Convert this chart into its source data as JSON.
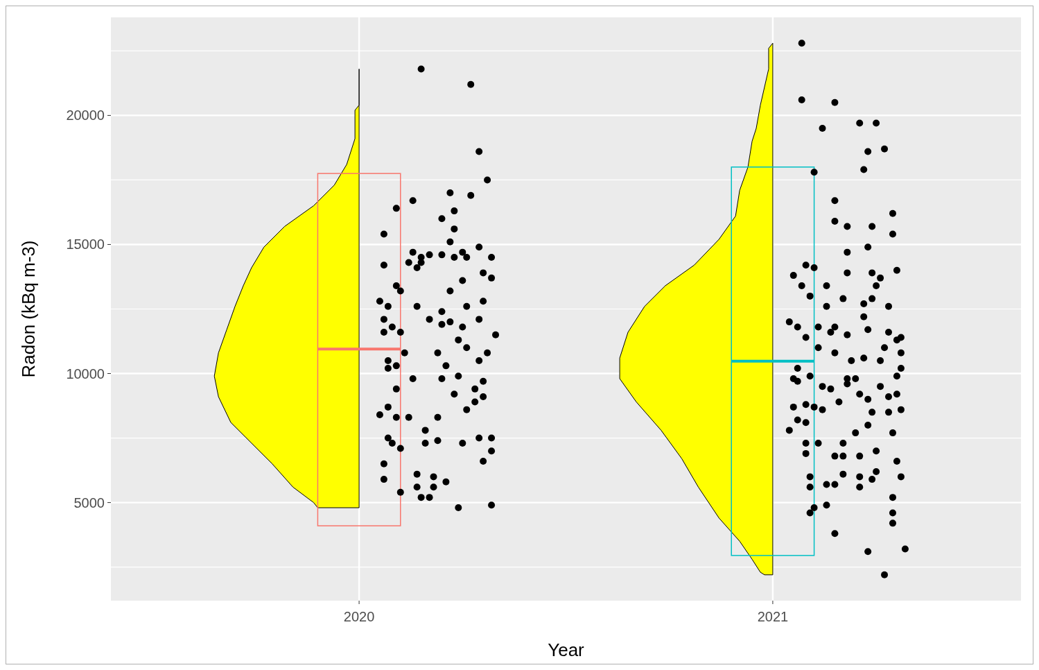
{
  "chart_data": {
    "type": "scatter",
    "xlabel": "Year",
    "ylabel": "Radon (kBq m-3)",
    "grid": true,
    "xlim": [
      2019.4,
      2021.6
    ],
    "xticks": [
      2020,
      2021
    ],
    "ylim": [
      1200,
      23800
    ],
    "yticks": [
      {
        "value": 2500,
        "label": null
      },
      5000,
      {
        "value": 7500,
        "label": null
      },
      10000,
      {
        "value": 12500,
        "label": null
      },
      15000,
      {
        "value": 17500,
        "label": null
      },
      20000,
      {
        "value": 22500,
        "label": null
      }
    ],
    "series": [
      {
        "type": "area",
        "color": "#ffff00",
        "x": [
          2020,
          2020,
          2019.99,
          2019.99,
          2019.97,
          2019.94,
          2019.89,
          2019.82,
          2019.77,
          2019.74,
          2019.72,
          2019.7,
          2019.68,
          2019.66,
          2019.65,
          2019.66,
          2019.69,
          2019.74,
          2019.79,
          2019.84,
          2019.89,
          2019.9,
          2020
        ],
        "values": [
          21800,
          20400,
          20200,
          19100,
          18100,
          17300,
          16500,
          15700,
          14900,
          14100,
          13400,
          12600,
          11700,
          10800,
          9900,
          9100,
          8100,
          7300,
          6500,
          5600,
          5000,
          4800,
          4800
        ]
      },
      {
        "type": "area",
        "color": "#ffff00",
        "x": [
          2021,
          2020.99,
          2020.99,
          2020.97,
          2020.96,
          2020.95,
          2020.94,
          2020.92,
          2020.91,
          2020.87,
          2020.81,
          2020.74,
          2020.69,
          2020.65,
          2020.63,
          2020.63,
          2020.67,
          2020.73,
          2020.78,
          2020.82,
          2020.87,
          2020.92,
          2020.95,
          2020.97,
          2020.98,
          2021
        ],
        "values": [
          22800,
          22600,
          21800,
          20400,
          19500,
          19000,
          18000,
          17100,
          16100,
          15200,
          14200,
          13400,
          12600,
          11600,
          10600,
          9800,
          8900,
          7800,
          6700,
          5600,
          4400,
          3500,
          2800,
          2300,
          2200,
          2200
        ]
      },
      {
        "type": "box",
        "x": [
          2020,
          2021
        ],
        "colors": [
          "#f8766d",
          "#00bfc4"
        ],
        "boxes": [
          {
            "low": 4100,
            "q1": 4100,
            "median": 10950,
            "q3": 17750,
            "high": 17750
          },
          {
            "low": 2950,
            "q1": 2950,
            "median": 10480,
            "q3": 18000,
            "high": 18000
          }
        ]
      },
      {
        "marker": "circle",
        "color": "#000000",
        "x": [
          2020.15,
          2020.27,
          2020.29,
          2020.31,
          2020.13,
          2020.27,
          2020.22,
          2020.09,
          2020.06,
          2020.23,
          2020.2,
          2020.23,
          2020.22,
          2020.25,
          2020.29,
          2020.32,
          2020.13,
          2020.15,
          2020.17,
          2020.2,
          2020.23,
          2020.26,
          2020.3,
          2020.32,
          2020.12,
          2020.14,
          2020.15,
          2020.09,
          2020.05,
          2020.07,
          2020.1,
          2020.14,
          2020.17,
          2020.2,
          2020.22,
          2020.25,
          2020.3,
          2020.33,
          2020.06,
          2020.08,
          2020.1,
          2020.11,
          2020.2,
          2020.24,
          2020.26,
          2020.29,
          2020.31,
          2020.07,
          2020.07,
          2020.09,
          2020.13,
          2020.19,
          2020.21,
          2020.24,
          2020.28,
          2020.3,
          2020.09,
          2020.07,
          2020.12,
          2020.19,
          2020.23,
          2020.26,
          2020.16,
          2020.19,
          2020.25,
          2020.29,
          2020.32,
          2020.06,
          2020.08,
          2020.1,
          2020.14,
          2020.18,
          2020.21,
          2020.3,
          2020.32,
          2020.06,
          2020.1,
          2020.15,
          2020.17,
          2020.18,
          2020.24,
          2020.32,
          2020.14,
          2020.07,
          2020.16,
          2020.28,
          2020.3,
          2020.26,
          2020.22,
          2020.25,
          2020.06,
          2020.06,
          2020.09,
          2020.05,
          2020.2,
          2020.29
        ],
        "values": [
          21800,
          21200,
          18600,
          17500,
          16700,
          16900,
          17000,
          16400,
          15400,
          16300,
          16000,
          15600,
          15100,
          14700,
          14900,
          14500,
          14700,
          14500,
          14600,
          14600,
          14500,
          14500,
          13900,
          13700,
          14300,
          14100,
          14300,
          13400,
          12800,
          12600,
          13200,
          12600,
          12100,
          12400,
          12000,
          11800,
          12800,
          11500,
          11600,
          11800,
          11600,
          10800,
          11900,
          11300,
          11000,
          10500,
          10800,
          10500,
          10200,
          9400,
          9800,
          10800,
          10300,
          9900,
          9400,
          9100,
          8300,
          8700,
          8300,
          8300,
          9200,
          8600,
          7300,
          7400,
          7300,
          7500,
          7500,
          6500,
          7300,
          7100,
          6100,
          6000,
          5800,
          6600,
          7000,
          5900,
          5400,
          5200,
          5200,
          5600,
          4800,
          4900,
          5600,
          7500,
          7800,
          8900,
          9700,
          12600,
          13200,
          13600,
          14200,
          12100,
          10300,
          8400,
          9800,
          12100
        ]
      },
      {
        "marker": "circle",
        "color": "#000000",
        "x": [
          2021.07,
          2021.07,
          2021.15,
          2021.12,
          2021.21,
          2021.25,
          2021.23,
          2021.27,
          2021.22,
          2021.1,
          2021.15,
          2021.15,
          2021.18,
          2021.24,
          2021.29,
          2021.29,
          2021.18,
          2021.23,
          2021.08,
          2021.1,
          2021.05,
          2021.13,
          2021.09,
          2021.07,
          2021.26,
          2021.3,
          2021.18,
          2021.24,
          2021.28,
          2021.24,
          2021.25,
          2021.22,
          2021.22,
          2021.17,
          2021.13,
          2021.15,
          2021.04,
          2021.06,
          2021.11,
          2021.08,
          2021.14,
          2021.18,
          2021.23,
          2021.28,
          2021.31,
          2021.31,
          2021.27,
          2021.3,
          2021.11,
          2021.15,
          2021.19,
          2021.26,
          2021.06,
          2021.05,
          2021.09,
          2021.12,
          2021.14,
          2021.2,
          2021.22,
          2021.26,
          2021.3,
          2021.31,
          2021.05,
          2021.08,
          2021.1,
          2021.12,
          2021.16,
          2021.18,
          2021.23,
          2021.28,
          2021.3,
          2021.31,
          2021.06,
          2021.08,
          2021.18,
          2021.21,
          2021.24,
          2021.28,
          2021.08,
          2021.11,
          2021.17,
          2021.2,
          2021.23,
          2021.25,
          2021.29,
          2021.08,
          2021.15,
          2021.17,
          2021.21,
          2021.25,
          2021.3,
          2021.31,
          2021.09,
          2021.13,
          2021.15,
          2021.17,
          2021.21,
          2021.21,
          2021.24,
          2021.29,
          2021.29,
          2021.29,
          2021.09,
          2021.1,
          2021.13,
          2021.15,
          2021.23,
          2021.32,
          2021.27,
          2021.04,
          2021.09,
          2021.06
        ],
        "values": [
          22800,
          20600,
          20500,
          19500,
          19700,
          19700,
          18600,
          18700,
          17900,
          17800,
          16700,
          15900,
          15700,
          15700,
          16200,
          15400,
          14700,
          14900,
          14200,
          14100,
          13800,
          13400,
          13000,
          13400,
          13700,
          14000,
          13900,
          13900,
          12600,
          12900,
          13400,
          12700,
          12200,
          12900,
          12600,
          11800,
          12000,
          11800,
          11800,
          11400,
          11600,
          11500,
          11700,
          11600,
          11400,
          10800,
          11000,
          11300,
          11000,
          10800,
          10500,
          10500,
          10200,
          9800,
          9900,
          9500,
          9400,
          9800,
          10600,
          9500,
          9900,
          10200,
          8700,
          8800,
          8700,
          8600,
          8900,
          9600,
          9000,
          9100,
          9200,
          8600,
          8200,
          8100,
          9800,
          9200,
          8500,
          8500,
          7300,
          7300,
          7300,
          7700,
          8000,
          7000,
          7700,
          6900,
          6800,
          6800,
          6800,
          6200,
          6600,
          6000,
          5600,
          5700,
          5700,
          6100,
          6000,
          5600,
          5900,
          5200,
          4600,
          4200,
          4600,
          4800,
          4900,
          3800,
          3100,
          3200,
          2200,
          7800,
          6000,
          9700
        ]
      }
    ]
  }
}
